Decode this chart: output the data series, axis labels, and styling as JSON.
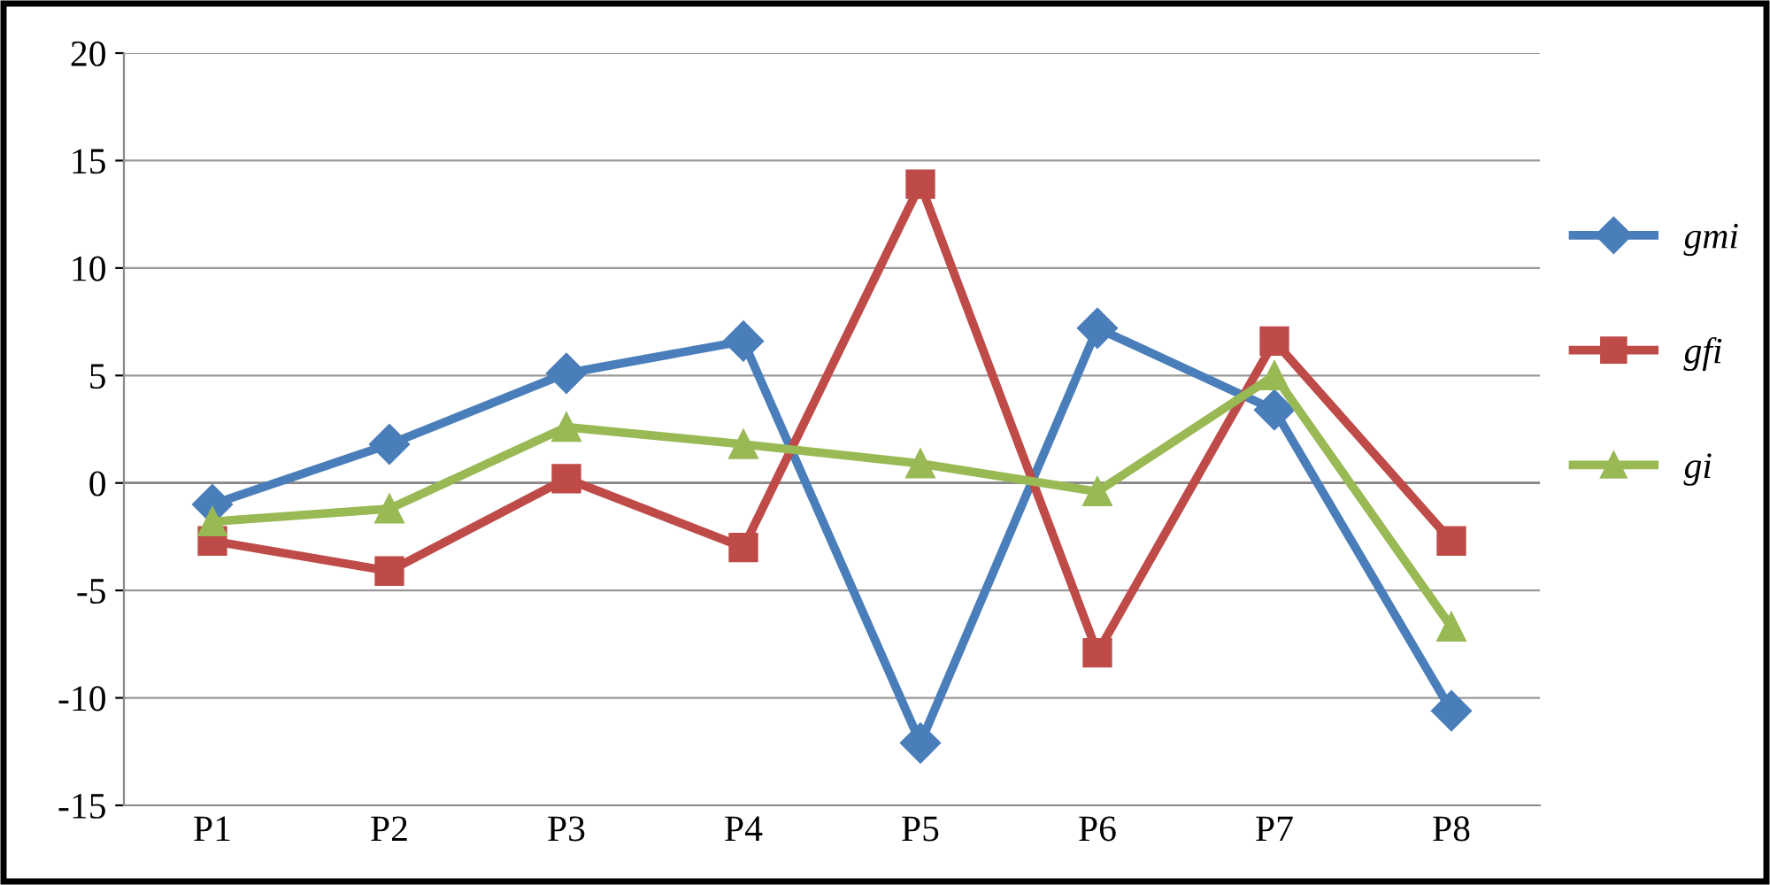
{
  "chart_data": {
    "type": "line",
    "categories": [
      "P1",
      "P2",
      "P3",
      "P4",
      "P5",
      "P6",
      "P7",
      "P8"
    ],
    "series": [
      {
        "name": "gmi",
        "color": "#4a7ebb",
        "marker": "diamond",
        "values": [
          -1.0,
          1.8,
          5.1,
          6.6,
          -12.1,
          7.2,
          3.4,
          -10.6
        ]
      },
      {
        "name": "gfi",
        "color": "#be4b48",
        "marker": "square",
        "values": [
          -2.7,
          -4.1,
          0.2,
          -3.0,
          13.9,
          -7.9,
          6.6,
          -2.7
        ]
      },
      {
        "name": "gi",
        "color": "#98b954",
        "marker": "triangle",
        "values": [
          -1.8,
          -1.2,
          2.6,
          1.8,
          0.9,
          -0.4,
          5.0,
          -6.7
        ]
      }
    ],
    "ylim": [
      -15,
      20
    ],
    "yticks": [
      -15,
      -10,
      -5,
      0,
      5,
      10,
      15,
      20
    ],
    "grid": "y",
    "legend": "right",
    "line_style": "solid"
  }
}
